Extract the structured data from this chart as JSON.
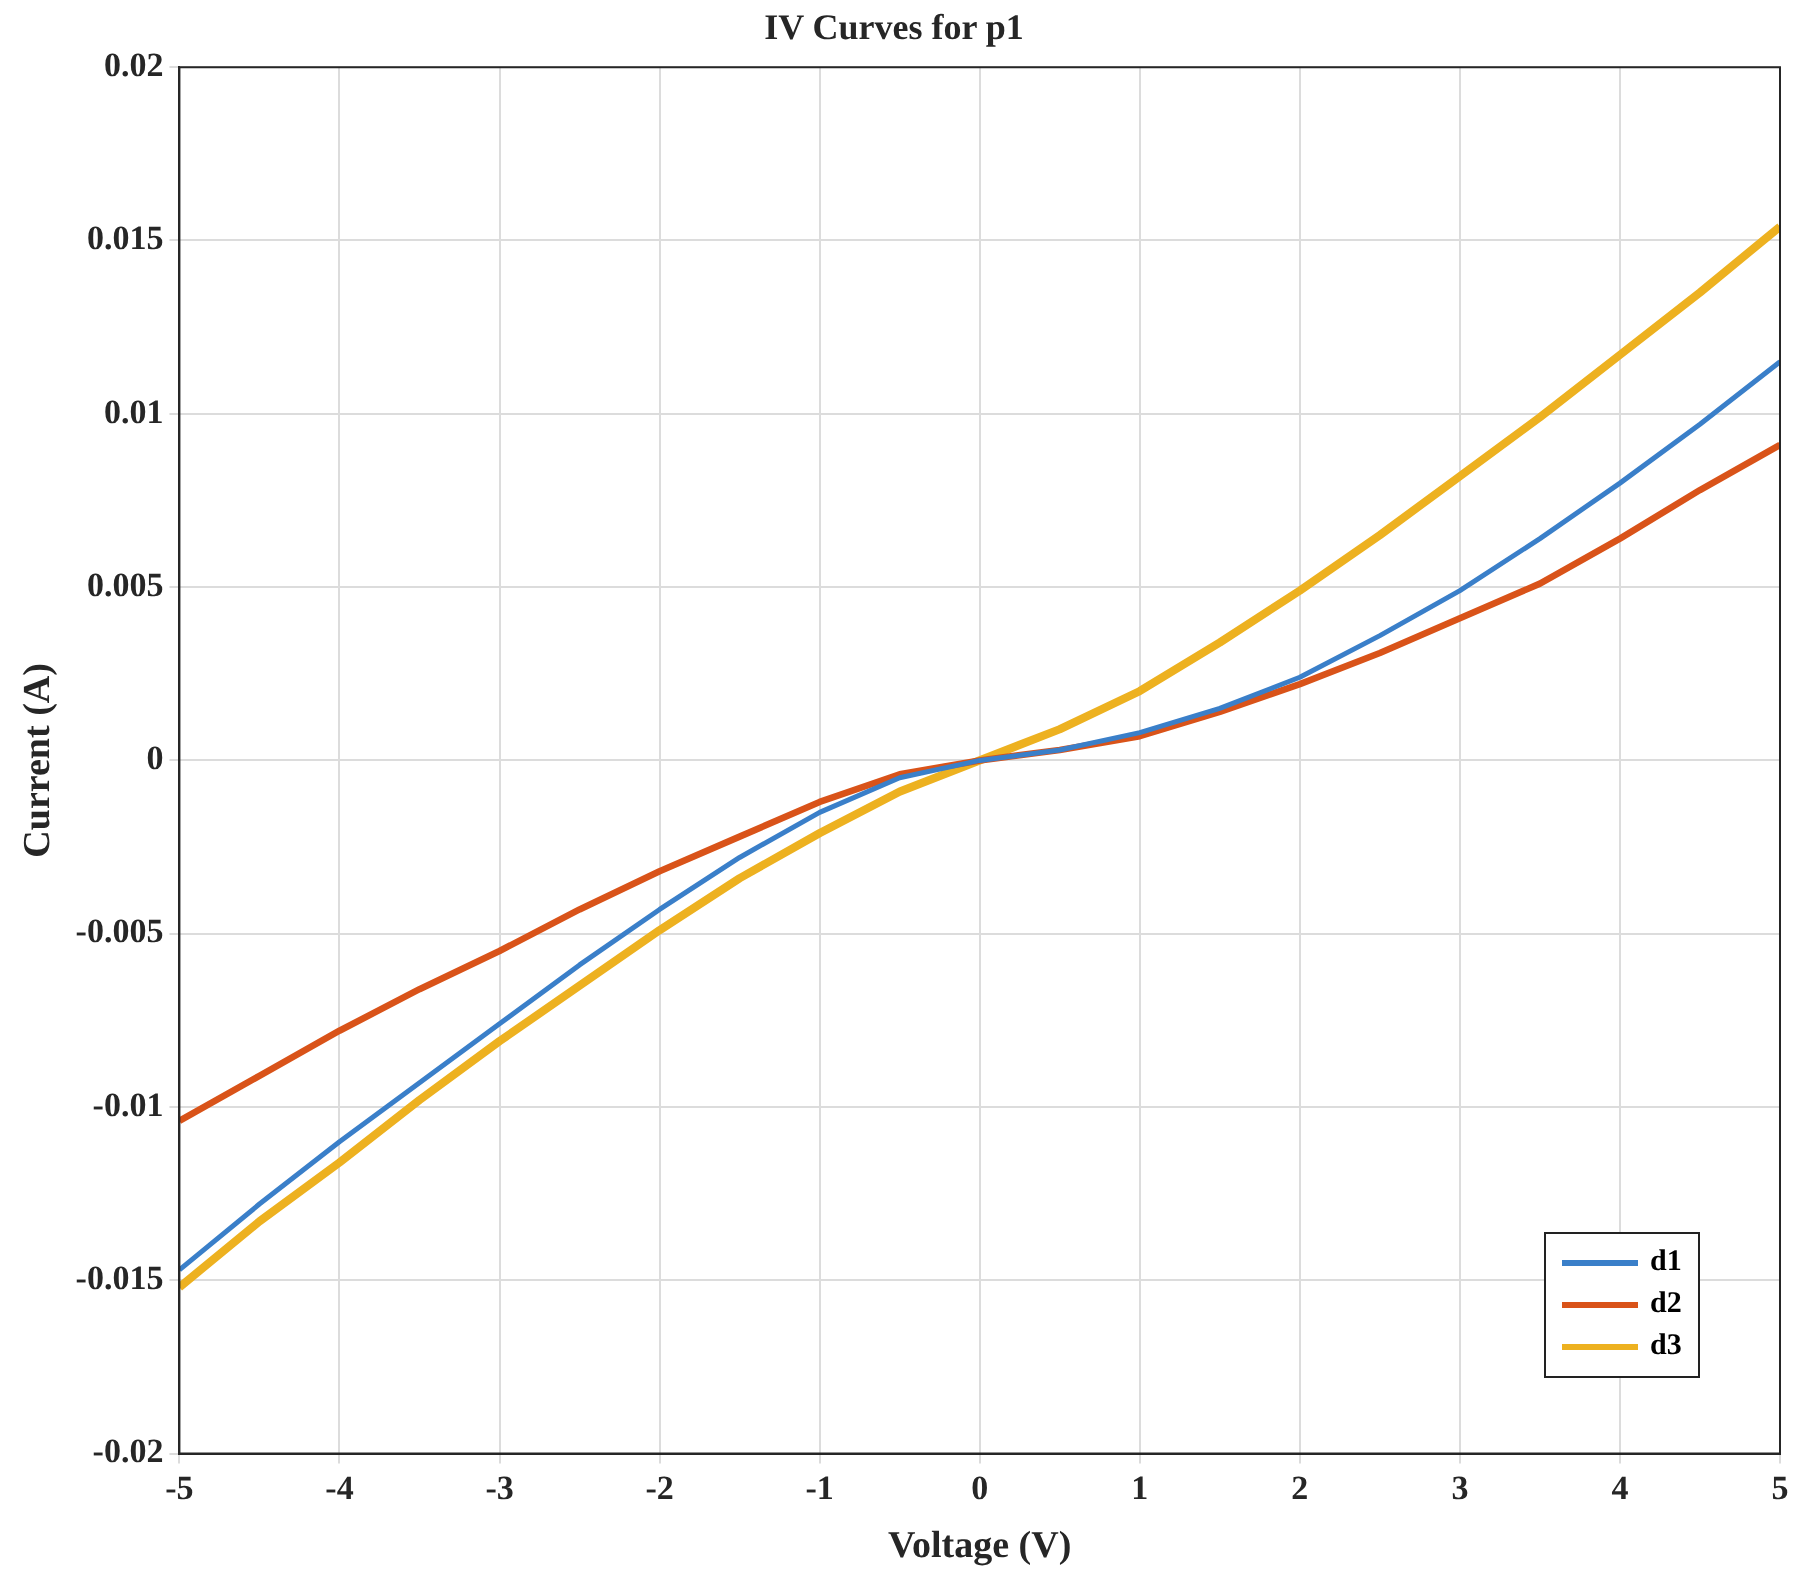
{
  "chart_data": {
    "type": "line",
    "title": "IV Curves for p1",
    "xlabel": "Voltage (V)",
    "ylabel": "Current (A)",
    "x": [
      -5,
      -4.5,
      -4,
      -3.5,
      -3,
      -2.5,
      -2,
      -1.5,
      -1,
      -0.5,
      0,
      0.5,
      1,
      1.5,
      2,
      2.5,
      3,
      3.5,
      4,
      4.5,
      5
    ],
    "series": [
      {
        "name": "d1",
        "color": "#3a7fc9",
        "values": [
          -0.0147,
          -0.0128,
          -0.011,
          -0.0093,
          -0.0076,
          -0.0059,
          -0.0043,
          -0.0028,
          -0.0015,
          -0.0005,
          0,
          0.0003,
          0.0008,
          0.0015,
          0.0024,
          0.0036,
          0.0049,
          0.0064,
          0.008,
          0.0097,
          0.0115
        ]
      },
      {
        "name": "d2",
        "color": "#d95319",
        "values": [
          -0.0104,
          -0.0091,
          -0.0078,
          -0.0066,
          -0.0055,
          -0.0043,
          -0.0032,
          -0.0022,
          -0.0012,
          -0.0004,
          0,
          0.0003,
          0.0007,
          0.0014,
          0.0022,
          0.0031,
          0.0041,
          0.0051,
          0.0064,
          0.0078,
          0.0091
        ]
      },
      {
        "name": "d3",
        "color": "#edb120",
        "values": [
          -0.0152,
          -0.0133,
          -0.0116,
          -0.0098,
          -0.0081,
          -0.0065,
          -0.0049,
          -0.0034,
          -0.0021,
          -0.0009,
          0,
          0.0009,
          0.002,
          0.0034,
          0.0049,
          0.0065,
          0.0082,
          0.0099,
          0.0117,
          0.0135,
          0.0154
        ]
      }
    ],
    "xlim": [
      -5,
      5
    ],
    "xticks": [
      -5,
      -4,
      -3,
      -2,
      -1,
      0,
      1,
      2,
      3,
      4,
      5
    ],
    "ylim": [
      -0.02,
      0.02
    ],
    "yticks": [
      -0.02,
      -0.015,
      -0.01,
      -0.005,
      0,
      0.005,
      0.01,
      0.015,
      0.02
    ],
    "grid": true,
    "legend": "bottom right",
    "marker": "none",
    "line_style": "solid"
  }
}
